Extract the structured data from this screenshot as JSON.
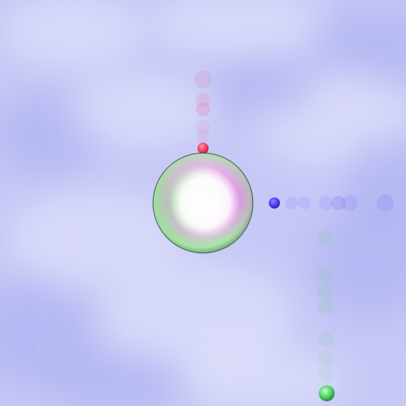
{
  "scene": {
    "sky_color": "#c6c8f6",
    "cloud_color": "#e0e1fb",
    "shadow_color": "#a9adf1"
  },
  "central_sphere": {
    "colors": [
      "#ffffff",
      "#e7b7ea",
      "#a7e6a6",
      "#3e5a43"
    ]
  },
  "particle_trails": [
    {
      "name": "red-trail",
      "color": "#ff3a68",
      "count": 6
    },
    {
      "name": "blue-trail",
      "color": "#5a4bff",
      "count": 7
    },
    {
      "name": "green-trail",
      "color": "#52d96a",
      "count": 8
    }
  ]
}
